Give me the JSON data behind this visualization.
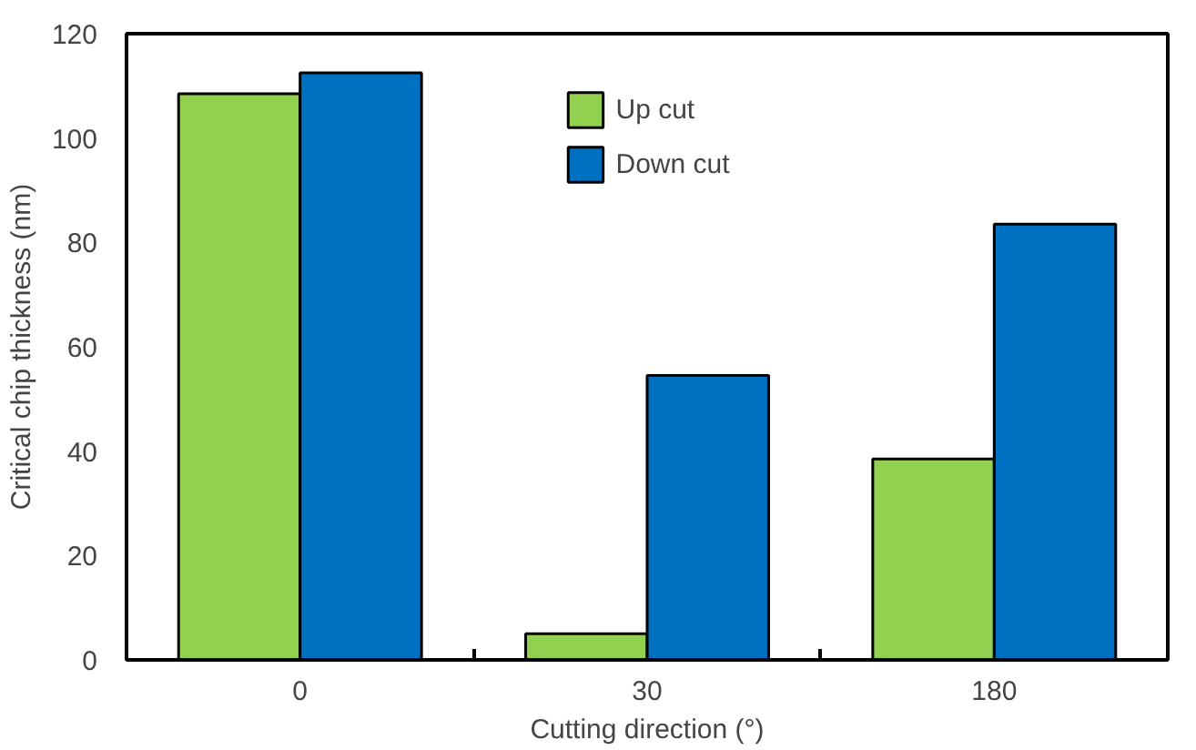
{
  "chart_data": {
    "type": "bar",
    "xlabel": "Cutting direction (°)",
    "ylabel": "Critical chip thickness (nm)",
    "categories": [
      "0",
      "30",
      "180"
    ],
    "series": [
      {
        "name": "Up cut",
        "color": "#92d050",
        "values": [
          108.5,
          5,
          38.5
        ]
      },
      {
        "name": "Down cut",
        "color": "#0070c0",
        "values": [
          112.5,
          54.5,
          83.5
        ]
      }
    ],
    "ylim": [
      0,
      120
    ],
    "yticks": [
      0,
      20,
      40,
      60,
      80,
      100,
      120
    ],
    "grid": false,
    "legend": "top"
  }
}
